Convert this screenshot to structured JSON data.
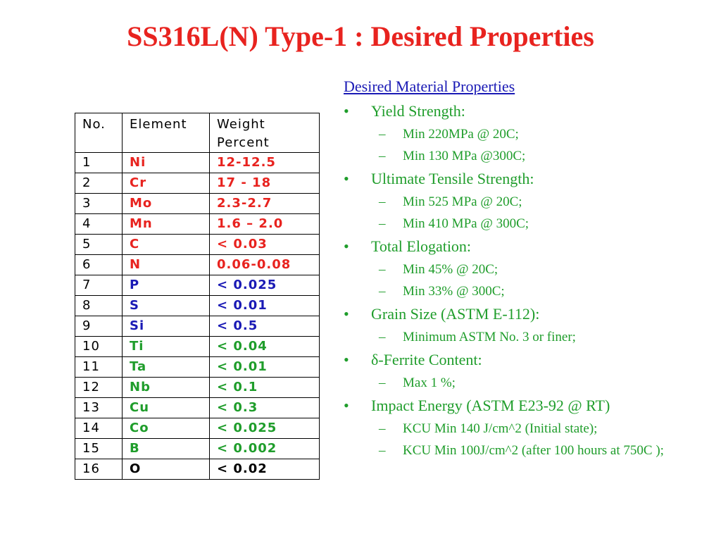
{
  "slide": {
    "title": "SS316L(N) Type-1 : Desired Properties"
  },
  "table": {
    "headers": {
      "no": "No.",
      "element": "Element",
      "weight_line1": "Weight",
      "weight_line2": "Percent"
    },
    "rows": [
      {
        "no": "1",
        "element": "Ni",
        "weight": "12-12.5",
        "color": "#e8231f"
      },
      {
        "no": "2",
        "element": "Cr",
        "weight": "17 - 18",
        "color": "#e8231f"
      },
      {
        "no": "3",
        "element": "Mo",
        "weight": "2.3-2.7",
        "color": "#e8231f"
      },
      {
        "no": "4",
        "element": "Mn",
        "weight": "1.6 – 2.0",
        "color": "#e8231f"
      },
      {
        "no": "5",
        "element": "C",
        "weight": "< 0.03",
        "color": "#e8231f"
      },
      {
        "no": "6",
        "element": "N",
        "weight": "0.06-0.08",
        "color": "#e8231f"
      },
      {
        "no": "7",
        "element": "P",
        "weight": "< 0.025",
        "color": "#1a1ab5"
      },
      {
        "no": "8",
        "element": "S",
        "weight": "< 0.01",
        "color": "#1a1ab5"
      },
      {
        "no": "9",
        "element": "Si",
        "weight": "< 0.5",
        "color": "#1a1ab5"
      },
      {
        "no": "10",
        "element": "Ti",
        "weight": "< 0.04",
        "color": "#1f9d2b"
      },
      {
        "no": "11",
        "element": "Ta",
        "weight": "< 0.01",
        "color": "#1f9d2b"
      },
      {
        "no": "12",
        "element": "Nb",
        "weight": "< 0.1",
        "color": "#1f9d2b"
      },
      {
        "no": "13",
        "element": "Cu",
        "weight": "< 0.3",
        "color": "#1f9d2b"
      },
      {
        "no": "14",
        "element": "Co",
        "weight": "< 0.025",
        "color": "#1f9d2b"
      },
      {
        "no": "15",
        "element": "B",
        "weight": "< 0.002",
        "color": "#1f9d2b"
      },
      {
        "no": "16",
        "element": "O",
        "weight": "< 0.02",
        "color": "#000000"
      }
    ]
  },
  "properties": {
    "heading": "Desired Material Properties",
    "bullet_glyph": "•",
    "dash_glyph": "–",
    "groups": [
      {
        "label": "Yield Strength:",
        "items": [
          "Min 220MPa @ 20C;",
          "Min 130 MPa @300C;"
        ]
      },
      {
        "label": "Ultimate Tensile Strength:",
        "items": [
          "Min 525 MPa @ 20C;",
          "Min 410 MPa @ 300C;"
        ]
      },
      {
        "label": "Total Elogation:",
        "items": [
          "Min 45% @ 20C;",
          "Min 33% @ 300C;"
        ]
      },
      {
        "label": "Grain Size (ASTM E-112):",
        "items": [
          "Minimum ASTM No. 3 or finer;"
        ]
      },
      {
        "label": "δ-Ferrite Content:",
        "items": [
          "Max 1 %;"
        ]
      },
      {
        "label": "Impact Energy (ASTM E23-92 @ RT)",
        "items": [
          "KCU Min 140 J/cm^2 (Initial state);",
          "KCU Min 100J/cm^2 (after 100 hours at 750C );"
        ]
      }
    ]
  },
  "colors": {
    "title": "#e8231f",
    "heading": "#1a1ab5",
    "properties_text": "#1f9d2b"
  }
}
